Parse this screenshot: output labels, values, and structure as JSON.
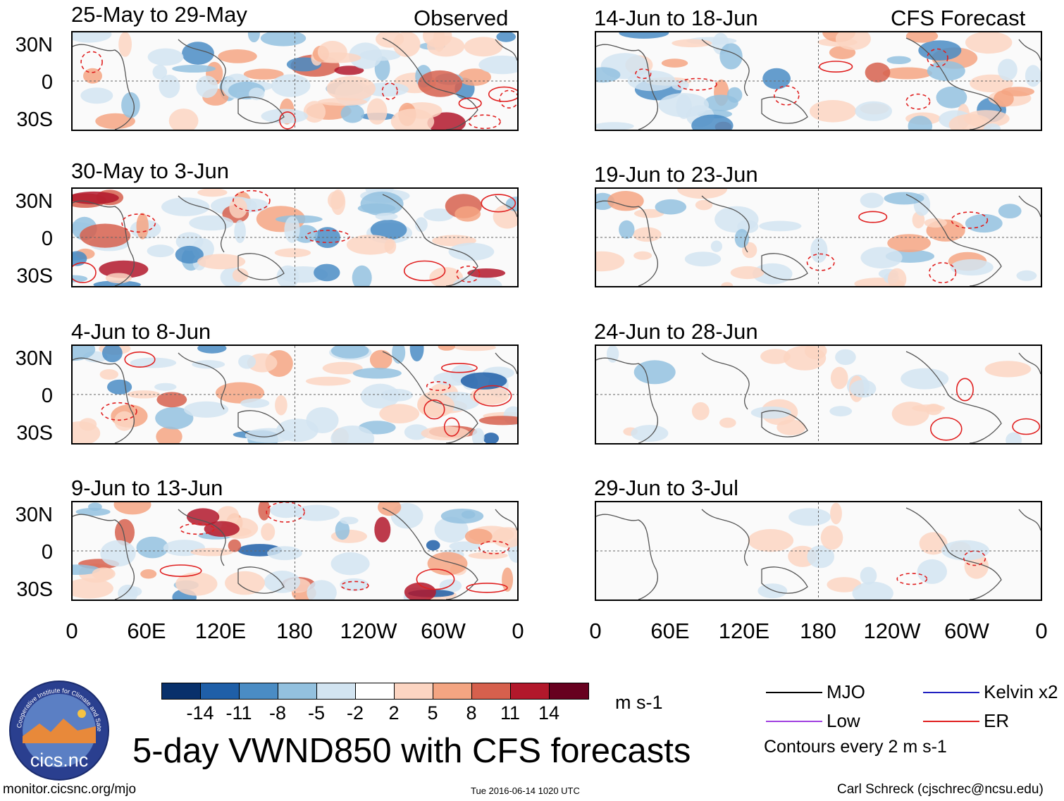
{
  "title": "5-day VWND850 with CFS forecasts",
  "observed_label": "Observed",
  "forecast_label": "CFS Forecast",
  "panels_observed": [
    {
      "period": "25-May to 29-May"
    },
    {
      "period": "30-May to 3-Jun"
    },
    {
      "period": "4-Jun to 8-Jun"
    },
    {
      "period": "9-Jun to 13-Jun"
    }
  ],
  "panels_forecast": [
    {
      "period": "14-Jun to 18-Jun"
    },
    {
      "period": "19-Jun to 23-Jun"
    },
    {
      "period": "24-Jun to 28-Jun"
    },
    {
      "period": "29-Jun to 3-Jul"
    }
  ],
  "lat_labels": [
    "30N",
    "0",
    "30S"
  ],
  "lon_labels": [
    "0",
    "60E",
    "120E",
    "180",
    "120W",
    "60W",
    "0"
  ],
  "colorbar": {
    "unit": "m s-1",
    "labels": [
      "-14",
      "-11",
      "-8",
      "-5",
      "-2",
      "2",
      "5",
      "8",
      "11",
      "14"
    ],
    "colors": [
      "#08306b",
      "#1f5fa8",
      "#4a8cc4",
      "#93c1df",
      "#d2e4f1",
      "#ffffff",
      "#fcd5c2",
      "#f4a582",
      "#d6604d",
      "#b2182b",
      "#67001f"
    ]
  },
  "legend": {
    "mjo": "MJO",
    "kelvin": "Kelvin x2",
    "low": "Low",
    "er": "ER",
    "contours": "Contours every 2 m s-1",
    "colors": {
      "mjo": "#000000",
      "kelvin": "#2020c0",
      "low": "#a040e0",
      "er": "#e02020"
    }
  },
  "footer": {
    "url": "monitor.cicsnc.org/mjo",
    "timestamp": "Tue 2016-06-14 1020 UTC",
    "author": "Carl Schreck (cjschrec@ncsu.edu)"
  },
  "logo": {
    "text": "cics.nc",
    "ring_text": "Cooperative Institute for Climate and Satellites"
  }
}
